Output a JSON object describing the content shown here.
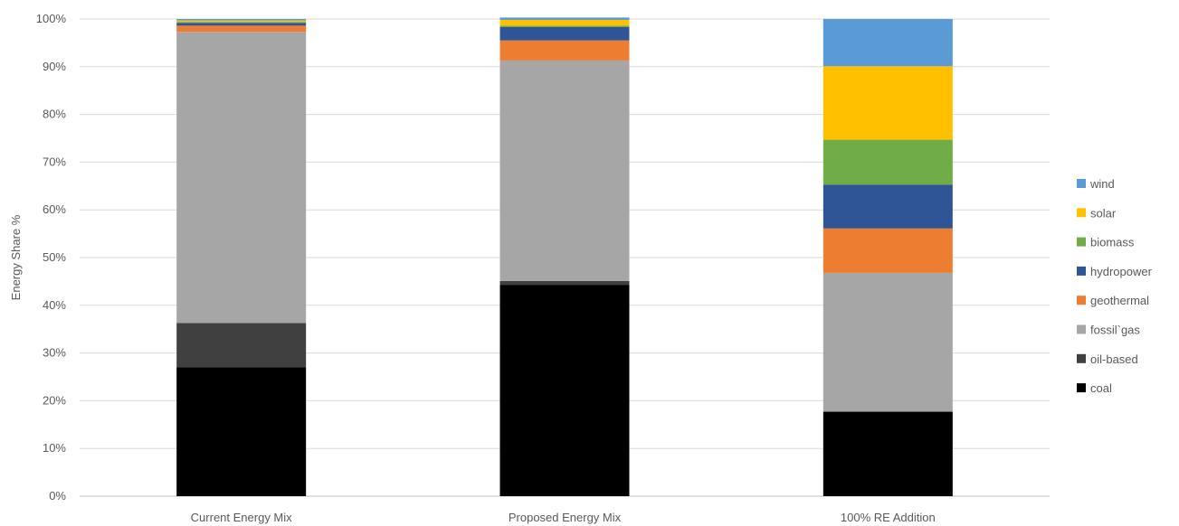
{
  "chart_data": {
    "type": "bar",
    "stacked": true,
    "title": "",
    "xlabel": "",
    "ylabel": "Energy Share %",
    "ylim": [
      0,
      100
    ],
    "y_ticks": [
      "0%",
      "10%",
      "20%",
      "30%",
      "40%",
      "50%",
      "60%",
      "70%",
      "80%",
      "90%",
      "100%"
    ],
    "categories": [
      "Current Energy Mix",
      "Proposed Energy Mix",
      "100% RE Addition"
    ],
    "grid": true,
    "legend_position": "right",
    "series": [
      {
        "name": "coal",
        "color": "#000000",
        "values": [
          27.0,
          44.3,
          17.7
        ]
      },
      {
        "name": "oil-based",
        "color": "#404040",
        "values": [
          9.3,
          0.8,
          0.0
        ]
      },
      {
        "name": "fossil`gas",
        "color": "#a6a6a6",
        "values": [
          61.0,
          46.2,
          29.1
        ]
      },
      {
        "name": "geothermal",
        "color": "#ed7d31",
        "values": [
          1.3,
          4.2,
          9.3
        ]
      },
      {
        "name": "hydropower",
        "color": "#2f5597",
        "values": [
          0.6,
          2.8,
          9.2
        ]
      },
      {
        "name": "biomass",
        "color": "#70ad47",
        "values": [
          0.2,
          0.3,
          9.4
        ]
      },
      {
        "name": "solar",
        "color": "#ffc000",
        "values": [
          0.3,
          1.2,
          15.4
        ]
      },
      {
        "name": "wind",
        "color": "#5b9bd5",
        "values": [
          0.3,
          0.5,
          9.9
        ]
      }
    ]
  }
}
